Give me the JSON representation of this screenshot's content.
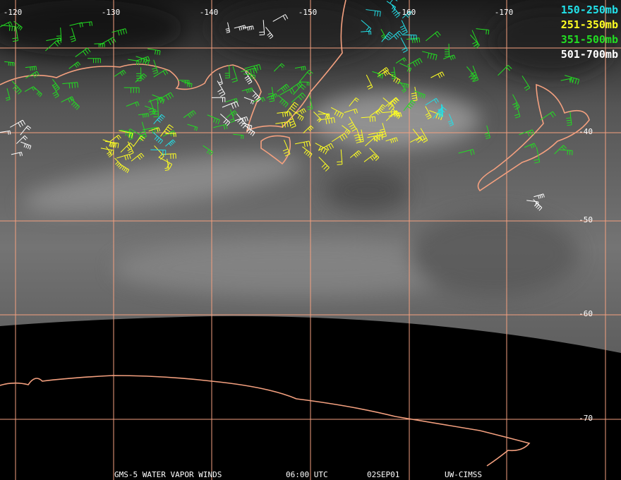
{
  "longitude_labels": [
    "-120",
    "-130",
    "-140",
    "-150",
    "-160",
    "-170"
  ],
  "latitude_labels": [
    "-40",
    "-50",
    "-60",
    "-70"
  ],
  "legend": [
    "150-250mb",
    "251-350mb",
    "351-500mb",
    "501-700mb"
  ],
  "footer": [
    "GMS-5 WATER VAPOR WINDS",
    "06:00 UTC",
    "02SEP01",
    "UW-CIMSS"
  ]
}
